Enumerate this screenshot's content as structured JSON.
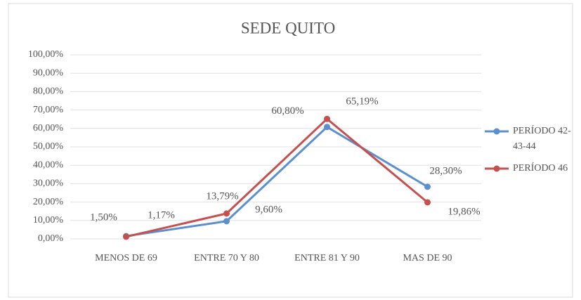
{
  "chart_data": {
    "type": "line",
    "title": "SEDE QUITO",
    "categories": [
      "MENOS DE 69",
      "ENTRE 70 Y 80",
      "ENTRE 81 Y 90",
      "MAS DE 90"
    ],
    "series": [
      {
        "name": "PERÍODO 42-43-44",
        "color": "#5b8fd0",
        "values": [
          1.5,
          9.6,
          60.8,
          28.3
        ],
        "value_labels": [
          "1,50%",
          "9,60%",
          "60,80%",
          "28,30%"
        ]
      },
      {
        "name": "PERÍODO 46",
        "color": "#c5504e",
        "values": [
          1.17,
          13.79,
          65.19,
          19.86
        ],
        "value_labels": [
          "1,17%",
          "13,79%",
          "65,19%",
          "19,86%"
        ]
      }
    ],
    "ylim": [
      0,
      100
    ],
    "yticks": [
      {
        "value": 0,
        "label": "0,00%"
      },
      {
        "value": 10,
        "label": "10,00%"
      },
      {
        "value": 20,
        "label": "20,00%"
      },
      {
        "value": 30,
        "label": "30,00%"
      },
      {
        "value": 40,
        "label": "40,00%"
      },
      {
        "value": 50,
        "label": "50,00%"
      },
      {
        "value": 60,
        "label": "60,00%"
      },
      {
        "value": 70,
        "label": "70,00%"
      },
      {
        "value": 80,
        "label": "80,00%"
      },
      {
        "value": 90,
        "label": "90,00%"
      },
      {
        "value": 100,
        "label": "100,00%"
      }
    ],
    "grid": true,
    "legend": "right"
  }
}
